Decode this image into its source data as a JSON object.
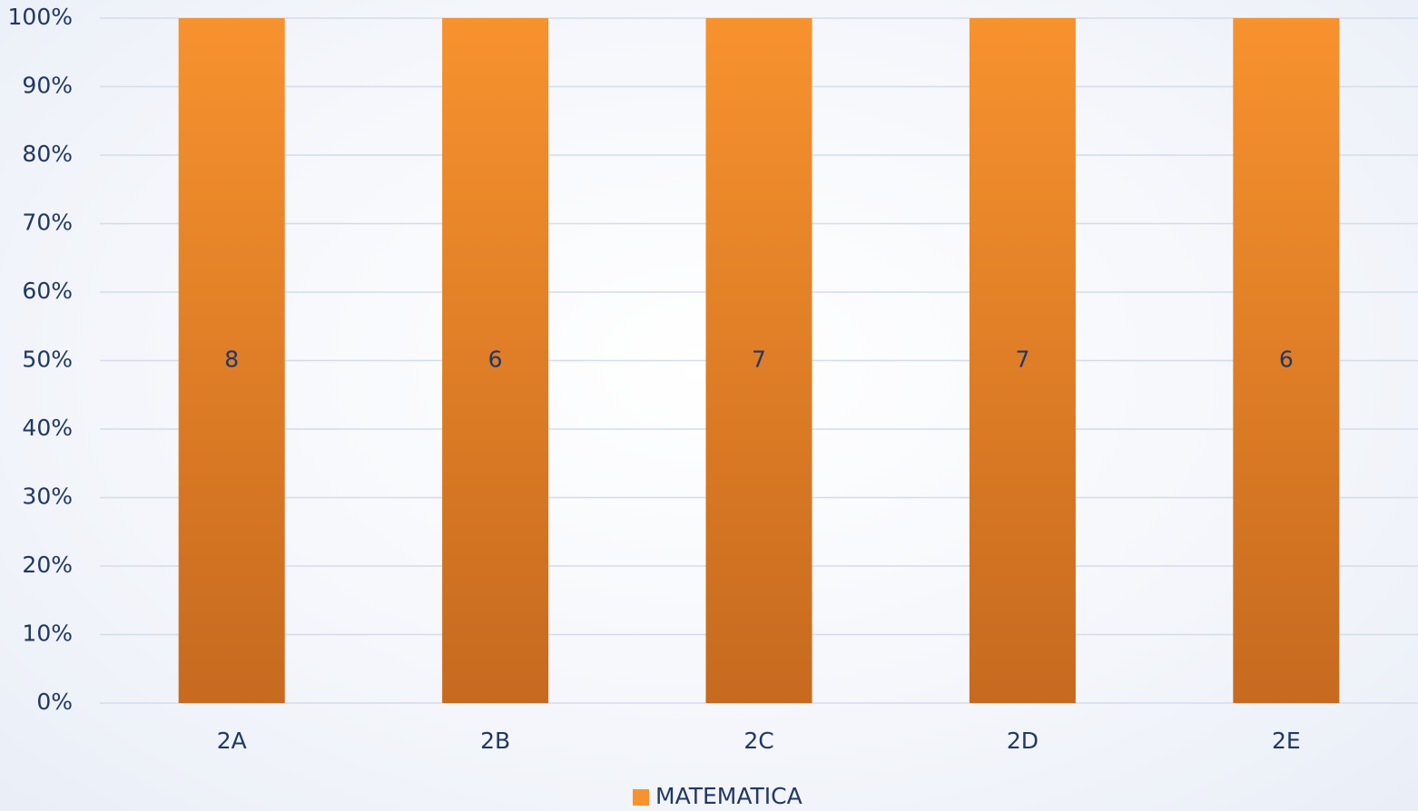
{
  "chart_data": {
    "type": "bar",
    "stacking": "percent",
    "categories": [
      "2A",
      "2B",
      "2C",
      "2D",
      "2E"
    ],
    "series": [
      {
        "name": "MATEMATICA",
        "color": "#f7922e",
        "values": [
          8,
          6,
          7,
          7,
          6
        ]
      }
    ],
    "ylim": [
      0,
      100
    ],
    "yticks": [
      {
        "value": 0,
        "label": "0%"
      },
      {
        "value": 10,
        "label": "10%"
      },
      {
        "value": 20,
        "label": "20%"
      },
      {
        "value": 30,
        "label": "30%"
      },
      {
        "value": 40,
        "label": "40%"
      },
      {
        "value": 50,
        "label": "50%"
      },
      {
        "value": 60,
        "label": "60%"
      },
      {
        "value": 70,
        "label": "70%"
      },
      {
        "value": 80,
        "label": "80%"
      },
      {
        "value": 90,
        "label": "90%"
      },
      {
        "value": 100,
        "label": "100%"
      }
    ],
    "grid": true,
    "legend": "bottom"
  }
}
